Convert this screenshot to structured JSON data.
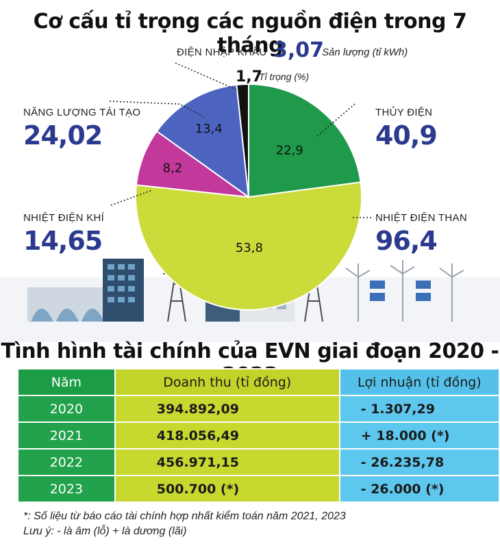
{
  "chart_data": {
    "type": "pie",
    "title": "Cơ cấu tỉ trọng các nguồn điện trong 7 tháng",
    "legend": {
      "value_number": "3,07",
      "value_label": "Sản lượng (tỉ kWh)",
      "share_number": "1,7",
      "share_label": "Tỉ trọng (%)"
    },
    "slices": [
      {
        "name": "THỦY ĐIỆN",
        "share": 22.9,
        "share_label": "22,9",
        "output": "40,9",
        "color": "#1f9a4b"
      },
      {
        "name": "NHIỆT ĐIỆN THAN",
        "share": 53.8,
        "share_label": "53,8",
        "output": "96,4",
        "color": "#cbdb3a"
      },
      {
        "name": "NHIỆT ĐIỆN KHÍ",
        "share": 8.2,
        "share_label": "8,2",
        "output": "14,65",
        "color": "#c2389b"
      },
      {
        "name": "NĂNG LƯỢNG TÁI TẠO",
        "share": 13.4,
        "share_label": "13,4",
        "output": "24,02",
        "color": "#4d63c0"
      },
      {
        "name": "ĐIỆN NHẬP KHẨU",
        "share": 1.7,
        "share_label": "1,7",
        "output": "3,07",
        "color": "#111111"
      }
    ]
  },
  "table": {
    "title": "Tình hình tài chính của EVN giai đoạn 2020 - 2023",
    "headers": {
      "year": "Năm",
      "revenue": "Doanh thu (tỉ đồng)",
      "profit": "Lợi nhuận (tỉ đồng)"
    },
    "rows": [
      {
        "year": "2020",
        "revenue": "394.892,09",
        "profit": "- 1.307,29"
      },
      {
        "year": "2021",
        "revenue": "418.056,49",
        "profit": "+ 18.000 (*)"
      },
      {
        "year": "2022",
        "revenue": "456.971,15",
        "profit": "- 26.235,78"
      },
      {
        "year": "2023",
        "revenue": "500.700 (*)",
        "profit": "- 26.000 (*)"
      }
    ]
  },
  "notes": {
    "line1": "*: Số liệu từ báo cáo tài chính hợp nhất kiểm toán năm 2021, 2023",
    "line2": "Lưu ý: - là âm (lỗ)   + là dương (lãi)"
  },
  "colors": {
    "accent_blue": "#2b3a8f",
    "year_green": "#1d9c46",
    "revenue_lime": "#c2d32a",
    "profit_sky": "#55c1ea"
  }
}
